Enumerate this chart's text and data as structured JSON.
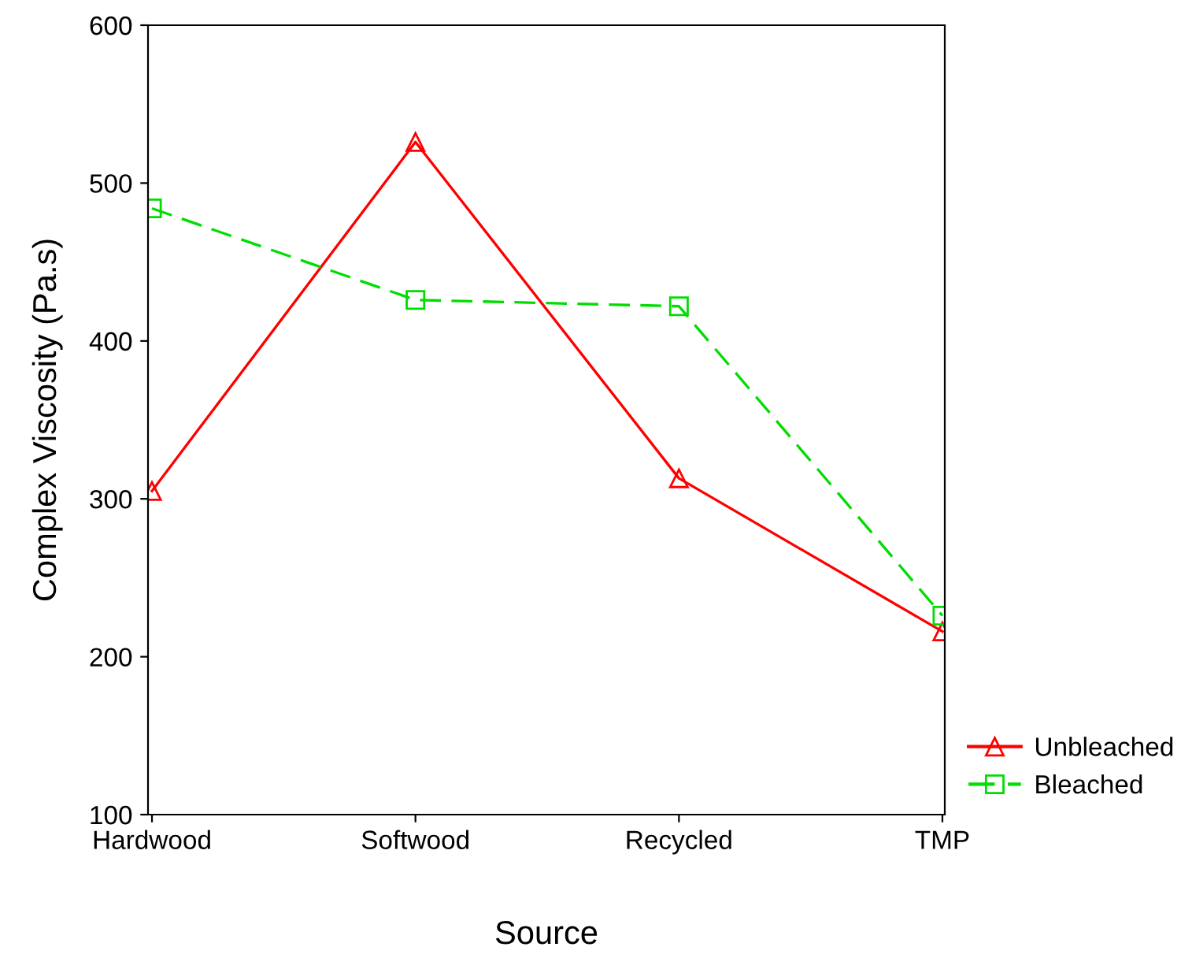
{
  "chart_data": {
    "type": "line",
    "xlabel": "Source",
    "ylabel": "Complex Viscosity (Pa.s)",
    "categories": [
      "Hardwood",
      "Softwood",
      "Recycled",
      "TMP"
    ],
    "series": [
      {
        "name": "Unbleached",
        "color": "#ff0000",
        "values": [
          305,
          526,
          313,
          216
        ],
        "marker": "triangle",
        "line_style": "solid"
      },
      {
        "name": "Bleached",
        "color": "#00dd00",
        "values": [
          484,
          426,
          422,
          226
        ],
        "marker": "square",
        "line_style": "dashed"
      }
    ],
    "ylim": [
      100,
      600
    ],
    "yticks": [
      100,
      200,
      300,
      400,
      500,
      600
    ],
    "grid": false,
    "legend": "bottom right"
  }
}
